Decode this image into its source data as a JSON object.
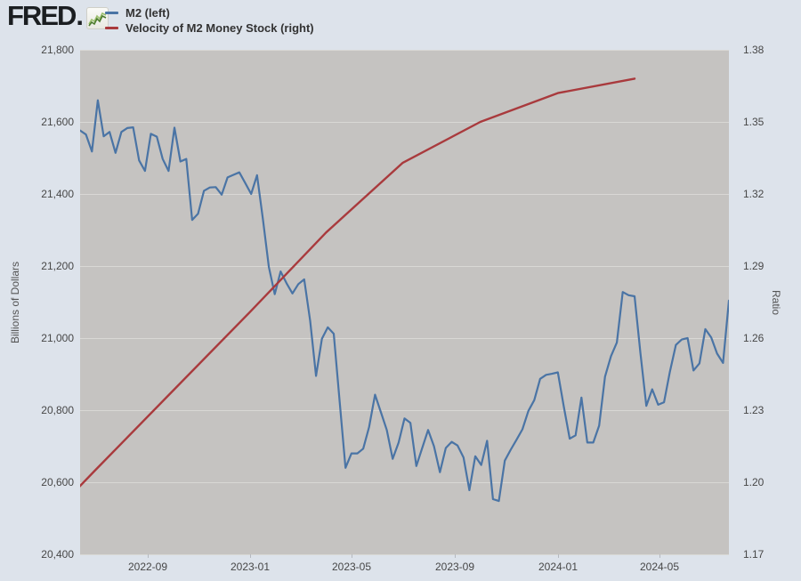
{
  "header": {
    "logo_text": "FRED",
    "logo_suffix": ".",
    "legend": [
      {
        "label": "M2 (left)",
        "color": "#4a74a5"
      },
      {
        "label": "Velocity of M2 Money Stock (right)",
        "color": "#a93a3d"
      }
    ]
  },
  "chart_data": {
    "type": "line",
    "title": "",
    "grid": "horizontal",
    "legend_position": "top-left",
    "plot_background": "#c5c3c1",
    "page_background": "#dde3eb",
    "left_axis": {
      "title": "Billions of Dollars",
      "min": 20400,
      "max": 21800,
      "ticks": [
        {
          "value": 21800,
          "label": "21,800"
        },
        {
          "value": 21600,
          "label": "21,600"
        },
        {
          "value": 21400,
          "label": "21,400"
        },
        {
          "value": 21200,
          "label": "21,200"
        },
        {
          "value": 21000,
          "label": "21,000"
        },
        {
          "value": 20800,
          "label": "20,800"
        },
        {
          "value": 20600,
          "label": "20,600"
        },
        {
          "value": 20400,
          "label": "20,400"
        }
      ]
    },
    "right_axis": {
      "title": "Ratio",
      "min": 1.17,
      "max": 1.38,
      "ticks": [
        {
          "value": 1.38,
          "label": "1.38"
        },
        {
          "value": 1.35,
          "label": "1.35"
        },
        {
          "value": 1.32,
          "label": "1.32"
        },
        {
          "value": 1.29,
          "label": "1.29"
        },
        {
          "value": 1.26,
          "label": "1.26"
        },
        {
          "value": 1.23,
          "label": "1.23"
        },
        {
          "value": 1.2,
          "label": "1.20"
        },
        {
          "value": 1.17,
          "label": "1.17"
        }
      ]
    },
    "x_axis": {
      "domain": [
        "2022-06-13",
        "2024-07-22"
      ],
      "ticks": [
        {
          "label": "2022-09",
          "date": "2022-09-01"
        },
        {
          "label": "2023-01",
          "date": "2023-01-01"
        },
        {
          "label": "2023-05",
          "date": "2023-05-01"
        },
        {
          "label": "2023-09",
          "date": "2023-09-01"
        },
        {
          "label": "2024-01",
          "date": "2024-01-01"
        },
        {
          "label": "2024-05",
          "date": "2024-05-01"
        }
      ]
    },
    "series": [
      {
        "name": "M2 (left)",
        "axis": "left",
        "color": "#4a74a5",
        "stroke_width": 2.2,
        "frequency": "weekly",
        "start_date": "2022-06-13",
        "interval_days": 7,
        "values": [
          21576,
          21565,
          21518,
          21660,
          21560,
          21572,
          21514,
          21572,
          21583,
          21585,
          21493,
          21464,
          21567,
          21559,
          21497,
          21464,
          21584,
          21490,
          21497,
          21328,
          21345,
          21409,
          21418,
          21419,
          21398,
          21446,
          21453,
          21460,
          21430,
          21400,
          21452,
          21330,
          21197,
          21122,
          21185,
          21152,
          21124,
          21150,
          21163,
          21048,
          20895,
          20998,
          21030,
          21012,
          20825,
          20640,
          20680,
          20680,
          20693,
          20753,
          20843,
          20794,
          20745,
          20665,
          20710,
          20777,
          20765,
          20645,
          20695,
          20745,
          20700,
          20628,
          20695,
          20712,
          20702,
          20669,
          20578,
          20672,
          20648,
          20715,
          20553,
          20548,
          20660,
          20690,
          20718,
          20747,
          20798,
          20828,
          20887,
          20898,
          20901,
          20905,
          20811,
          20721,
          20730,
          20835,
          20710,
          20710,
          20757,
          20893,
          20950,
          20988,
          21128,
          21119,
          21116,
          20958,
          20812,
          20858,
          20815,
          20822,
          20907,
          20981,
          20996,
          21000,
          20910,
          20930,
          21025,
          21002,
          20957,
          20931,
          21104
        ]
      },
      {
        "name": "Velocity of M2 Money Stock (right)",
        "axis": "right",
        "color": "#a93a3d",
        "stroke_width": 2.4,
        "frequency": "quarterly",
        "dates": [
          "2022-04-01",
          "2022-07-01",
          "2022-10-01",
          "2023-01-01",
          "2023-04-01",
          "2023-07-01",
          "2023-10-01",
          "2024-01-01",
          "2024-04-01"
        ],
        "values": [
          1.172,
          1.205,
          1.238,
          1.271,
          1.304,
          1.333,
          1.35,
          1.362,
          1.368
        ]
      }
    ]
  }
}
